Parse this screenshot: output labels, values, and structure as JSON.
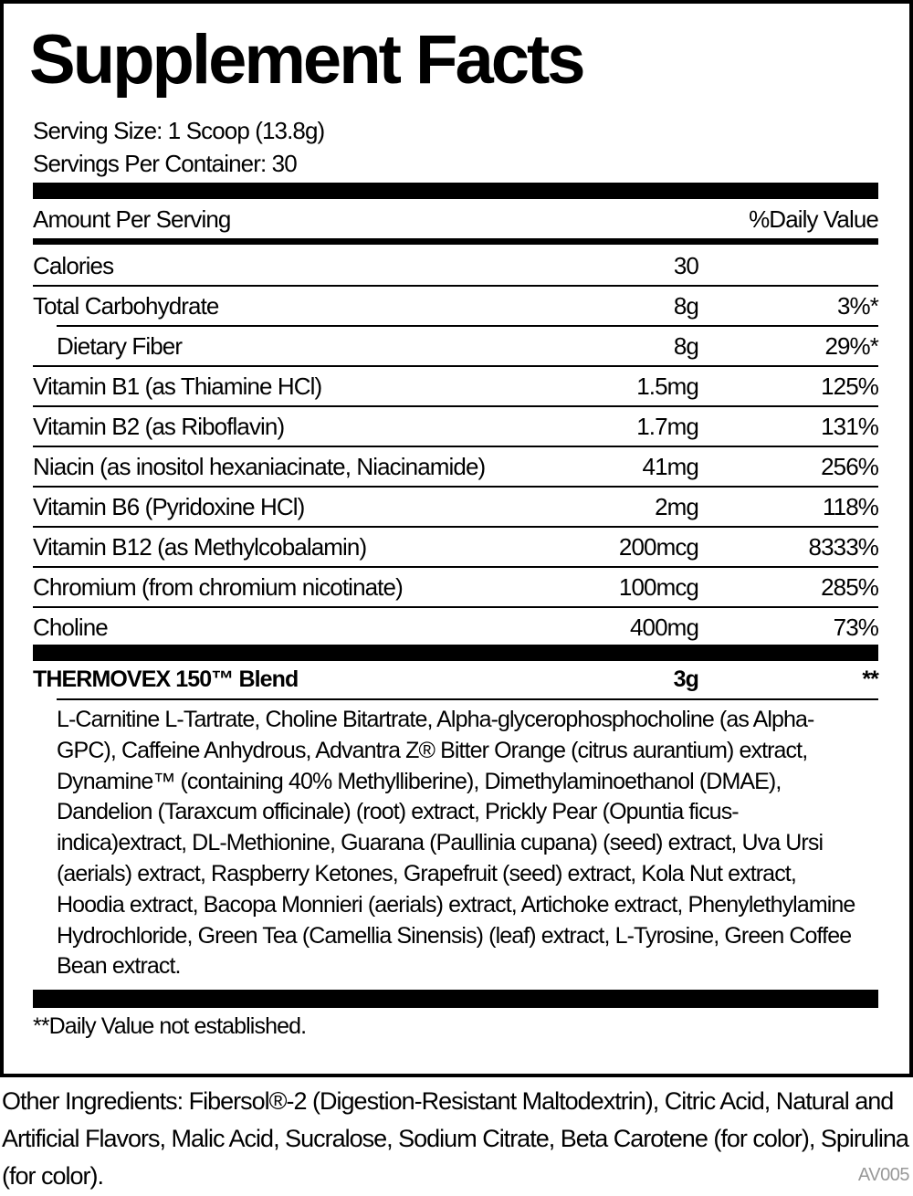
{
  "title": "Supplement Facts",
  "serving_size": "Serving Size: 1 Scoop (13.8g)",
  "servings_per_container": "Servings Per Container: 30",
  "header": {
    "amount": "Amount Per Serving",
    "dv": "%Daily Value"
  },
  "rows": [
    {
      "name": "Calories",
      "amount": "30",
      "dv": ""
    },
    {
      "name": "Total Carbohydrate",
      "amount": "8g",
      "dv": "3%*"
    },
    {
      "name": "Dietary Fiber",
      "amount": "8g",
      "dv": "29%*"
    },
    {
      "name": "Vitamin B1 (as Thiamine HCl)",
      "amount": "1.5mg",
      "dv": "125%"
    },
    {
      "name": "Vitamin B2 (as Riboflavin)",
      "amount": "1.7mg",
      "dv": "131%"
    },
    {
      "name": "Niacin (as inositol hexaniacinate, Niacinamide)",
      "amount": "41mg",
      "dv": "256%"
    },
    {
      "name": "Vitamin B6 (Pyridoxine HCl)",
      "amount": "2mg",
      "dv": "118%"
    },
    {
      "name": "Vitamin B12 (as Methylcobalamin)",
      "amount": "200mcg",
      "dv": "8333%"
    },
    {
      "name": "Chromium (from chromium nicotinate)",
      "amount": "100mcg",
      "dv": "285%"
    },
    {
      "name": "Choline",
      "amount": "400mg",
      "dv": "73%"
    }
  ],
  "blend": {
    "name": "THERMOVEX 150™ Blend",
    "amount": "3g",
    "dv": "**",
    "ingredients": "L-Carnitine L-Tartrate, Choline Bitartrate, Alpha-glycerophosphocholine (as Alpha-GPC), Caffeine Anhydrous, Advantra Z® Bitter Orange (citrus aurantium) extract, Dynamine™ (containing 40% Methylliberine), Dimethylaminoethanol (DMAE), Dandelion (Taraxcum officinale) (root) extract, Prickly Pear (Opuntia ficus-indica)extract, DL-Methionine, Guarana (Paullinia cupana) (seed) extract, Uva Ursi (aerials) extract, Raspberry Ketones, Grapefruit (seed) extract, Kola Nut extract, Hoodia extract, Bacopa Monnieri (aerials) extract, Artichoke extract, Phenylethylamine Hydrochloride, Green Tea (Camellia Sinensis) (leaf) extract, L-Tyrosine, Green Coffee Bean extract."
  },
  "footnote": "**Daily Value not established.",
  "other_ingredients": "Other Ingredients: Fibersol®-2 (Digestion-Resistant Maltodextrin), Citric Acid, Natural and Artificial Flavors, Malic Acid, Sucralose, Sodium Citrate, Beta Carotene (for color), Spirulina (for color).",
  "code": "AV005"
}
